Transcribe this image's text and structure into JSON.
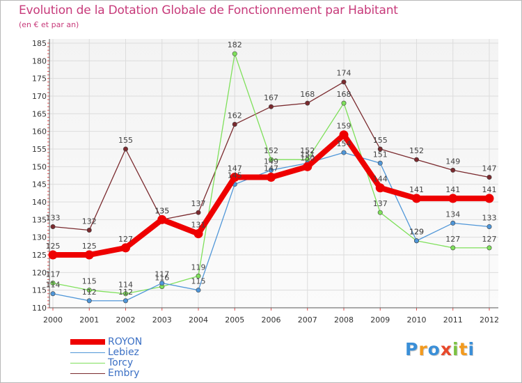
{
  "chart_data": {
    "type": "line",
    "title": "Evolution de la Dotation Globale de Fonctionnement par Habitant",
    "subtitle": "(en € et par an)",
    "xlabel": "",
    "ylabel": "",
    "ylim": [
      110,
      185
    ],
    "y_ticks": [
      110,
      115,
      120,
      125,
      130,
      135,
      140,
      145,
      150,
      155,
      160,
      165,
      170,
      175,
      180,
      185
    ],
    "categories": [
      "2000",
      "2001",
      "2002",
      "2003",
      "2004",
      "2005",
      "2006",
      "2007",
      "2008",
      "2009",
      "2010",
      "2011",
      "2012"
    ],
    "grid": true,
    "legend_position": "bottom-left",
    "series": [
      {
        "name": "ROYON",
        "color": "#ee0000",
        "values": [
          125,
          125,
          127,
          135,
          131,
          147,
          147,
          150,
          159,
          144,
          141,
          141,
          141
        ]
      },
      {
        "name": "Lebiez",
        "color": "#4f96d8",
        "values": [
          114,
          112,
          112,
          117,
          115,
          145,
          149,
          151,
          154,
          151,
          129,
          134,
          133
        ]
      },
      {
        "name": "Torcy",
        "color": "#7ee05a",
        "values": [
          117,
          115,
          114,
          116,
          119,
          182,
          152,
          152,
          168,
          137,
          129,
          127,
          127
        ]
      },
      {
        "name": "Embry",
        "color": "#7a2a2e",
        "values": [
          133,
          132,
          155,
          135,
          137,
          162,
          167,
          168,
          174,
          155,
          152,
          149,
          147
        ]
      }
    ]
  },
  "logo": {
    "letters": [
      "P",
      "r",
      "o",
      "x",
      "i",
      "t",
      "i"
    ],
    "colors": [
      "#3a8fd8",
      "#f39a1e",
      "#3a8fd8",
      "#e8482a",
      "#7cc242",
      "#f39a1e",
      "#3a8fd8"
    ]
  }
}
